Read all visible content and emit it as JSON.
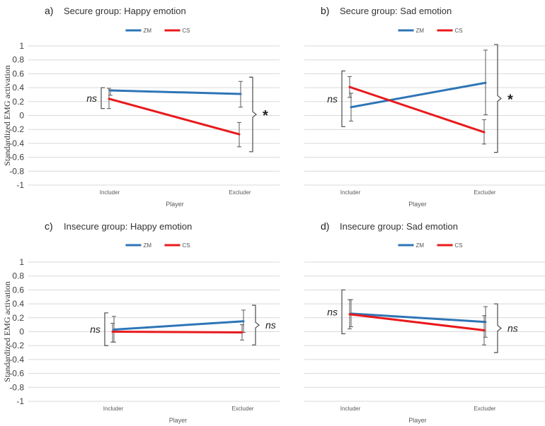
{
  "figure": {
    "ylabel": "Standardized EMG activation",
    "xlabel": "Player"
  },
  "chart_data": [
    {
      "panel": "a)",
      "title": "Secure group: Happy emotion",
      "type": "line",
      "categories": [
        "Includer",
        "Excluder"
      ],
      "xlabel": "Player",
      "ylabel": "Standardized EMG activation",
      "ylim": [
        -1,
        1
      ],
      "yticks": [
        "1",
        "0.8",
        "0.6",
        "0.4",
        "0.2",
        "0",
        "-0.2",
        "-0.4",
        "-0.6",
        "-0.8",
        "-1"
      ],
      "show_yticks": true,
      "legend": "top-center",
      "series": [
        {
          "name": "ZM",
          "color": "#2e75b6",
          "values": [
            0.36,
            0.31
          ],
          "err_low": [
            0.29,
            0.12
          ],
          "err_high": [
            0.37,
            0.49
          ]
        },
        {
          "name": "CS",
          "color": "#e8191c",
          "values": [
            0.24,
            -0.27
          ],
          "err_low": [
            0.1,
            -0.45
          ],
          "err_high": [
            0.39,
            -0.1
          ]
        }
      ],
      "annotations": [
        {
          "at": "Includer",
          "text": "ns",
          "span": [
            0.1,
            0.4
          ],
          "side": "left"
        },
        {
          "at": "Excluder",
          "text": "*",
          "span": [
            -0.52,
            0.55
          ],
          "side": "right"
        }
      ]
    },
    {
      "panel": "b)",
      "title": "Secure group: Sad emotion",
      "type": "line",
      "categories": [
        "Includer",
        "Excluder"
      ],
      "xlabel": "Player",
      "ylabel": "",
      "ylim": [
        -1,
        1
      ],
      "yticks": [
        "1",
        "0.8",
        "0.6",
        "0.4",
        "0.2",
        "0",
        "-0.2",
        "-0.4",
        "-0.6",
        "-0.8",
        "-1"
      ],
      "show_yticks": false,
      "legend": "top-center",
      "series": [
        {
          "name": "ZM",
          "color": "#2e75b6",
          "values": [
            0.12,
            0.47
          ],
          "err_low": [
            -0.08,
            0.01
          ],
          "err_high": [
            0.32,
            0.94
          ]
        },
        {
          "name": "CS",
          "color": "#e8191c",
          "values": [
            0.41,
            -0.24
          ],
          "err_low": [
            0.26,
            -0.41
          ],
          "err_high": [
            0.56,
            -0.06
          ]
        }
      ],
      "annotations": [
        {
          "at": "Includer",
          "text": "ns",
          "span": [
            -0.16,
            0.64
          ],
          "side": "left"
        },
        {
          "at": "Excluder",
          "text": "*",
          "span": [
            -0.53,
            1.02
          ],
          "side": "right"
        }
      ]
    },
    {
      "panel": "c)",
      "title": "Insecure group: Happy emotion",
      "type": "line",
      "categories": [
        "Includer",
        "Excluder"
      ],
      "xlabel": "Player",
      "ylabel": "Standardized EMG activation",
      "ylim": [
        -1,
        1
      ],
      "yticks": [
        "1",
        "0.8",
        "0.6",
        "0.4",
        "0.2",
        "0",
        "-0.2",
        "-0.4",
        "-0.6",
        "-0.8",
        "-1"
      ],
      "show_yticks": true,
      "legend": "top-center",
      "series": [
        {
          "name": "ZM",
          "color": "#2e75b6",
          "values": [
            0.03,
            0.15
          ],
          "err_low": [
            -0.15,
            -0.01
          ],
          "err_high": [
            0.22,
            0.31
          ]
        },
        {
          "name": "CS",
          "color": "#e8191c",
          "values": [
            0.0,
            -0.01
          ],
          "err_low": [
            -0.15,
            -0.12
          ],
          "err_high": [
            0.12,
            0.1
          ]
        }
      ],
      "annotations": [
        {
          "at": "Includer",
          "text": "ns",
          "span": [
            -0.2,
            0.27
          ],
          "side": "left"
        },
        {
          "at": "Excluder",
          "text": "ns",
          "span": [
            -0.19,
            0.38
          ],
          "side": "right"
        }
      ]
    },
    {
      "panel": "d)",
      "title": "Insecure group: Sad emotion",
      "type": "line",
      "categories": [
        "Includer",
        "Excluder"
      ],
      "xlabel": "Player",
      "ylabel": "",
      "ylim": [
        -1,
        1
      ],
      "yticks": [
        "1",
        "0.8",
        "0.6",
        "0.4",
        "0.2",
        "0",
        "-0.2",
        "-0.4",
        "-0.6",
        "-0.8",
        "-1"
      ],
      "show_yticks": false,
      "legend": "top-center",
      "series": [
        {
          "name": "ZM",
          "color": "#2e75b6",
          "values": [
            0.26,
            0.14
          ],
          "err_low": [
            0.07,
            -0.08
          ],
          "err_high": [
            0.46,
            0.36
          ]
        },
        {
          "name": "CS",
          "color": "#e8191c",
          "values": [
            0.25,
            0.02
          ],
          "err_low": [
            0.04,
            -0.19
          ],
          "err_high": [
            0.46,
            0.23
          ]
        }
      ],
      "annotations": [
        {
          "at": "Includer",
          "text": "ns",
          "span": [
            -0.03,
            0.6
          ],
          "side": "left"
        },
        {
          "at": "Excluder",
          "text": "ns",
          "span": [
            -0.3,
            0.4
          ],
          "side": "right"
        }
      ]
    }
  ]
}
